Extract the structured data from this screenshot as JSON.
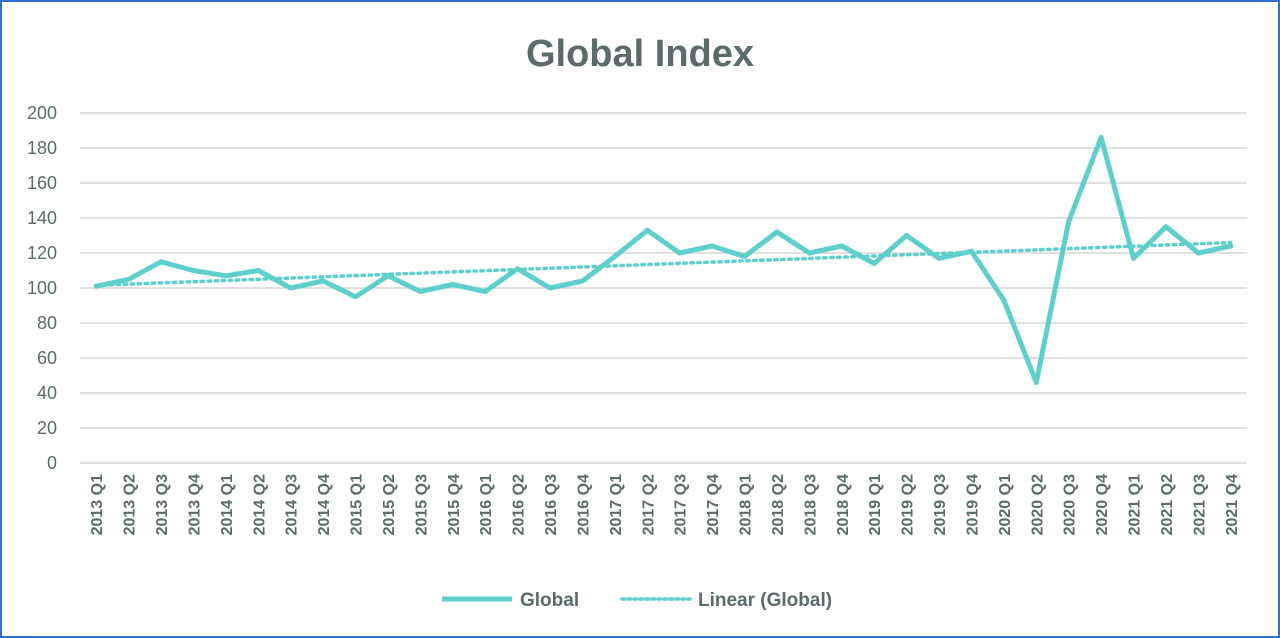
{
  "chart_data": {
    "type": "line",
    "title": "Global Index",
    "xlabel": "",
    "ylabel": "",
    "ylim": [
      0,
      200
    ],
    "yticks": [
      0,
      20,
      40,
      60,
      80,
      100,
      120,
      140,
      160,
      180,
      200
    ],
    "grid": true,
    "legend_position": "bottom",
    "categories": [
      "2013 Q1",
      "2013 Q2",
      "2013 Q3",
      "2013 Q4",
      "2014 Q1",
      "2014 Q2",
      "2014 Q3",
      "2014 Q4",
      "2015 Q1",
      "2015 Q2",
      "2015 Q3",
      "2015 Q4",
      "2016 Q1",
      "2016 Q2",
      "2016 Q3",
      "2016 Q4",
      "2017 Q1",
      "2017 Q2",
      "2017 Q3",
      "2017 Q4",
      "2018 Q1",
      "2018 Q2",
      "2018 Q3",
      "2018 Q4",
      "2019 Q1",
      "2019 Q2",
      "2019 Q3",
      "2019 Q4",
      "2020 Q1",
      "2020 Q2",
      "2020 Q3",
      "2020 Q4",
      "2021 Q1",
      "2021 Q2",
      "2021 Q3",
      "2021 Q4"
    ],
    "series": [
      {
        "name": "Global",
        "color": "#5ecfcb",
        "values": [
          101,
          105,
          115,
          110,
          107,
          110,
          100,
          104,
          95,
          107,
          98,
          102,
          98,
          111,
          100,
          104,
          118,
          133,
          120,
          124,
          118,
          132,
          120,
          124,
          114,
          130,
          117,
          121,
          93,
          46,
          138,
          186,
          117,
          135,
          120,
          124
        ]
      },
      {
        "name": "Linear (Global)",
        "color": "#5ecfcb",
        "style": "dotted",
        "trendline_of": "Global",
        "values_start_end": [
          101.5,
          126
        ]
      }
    ]
  }
}
